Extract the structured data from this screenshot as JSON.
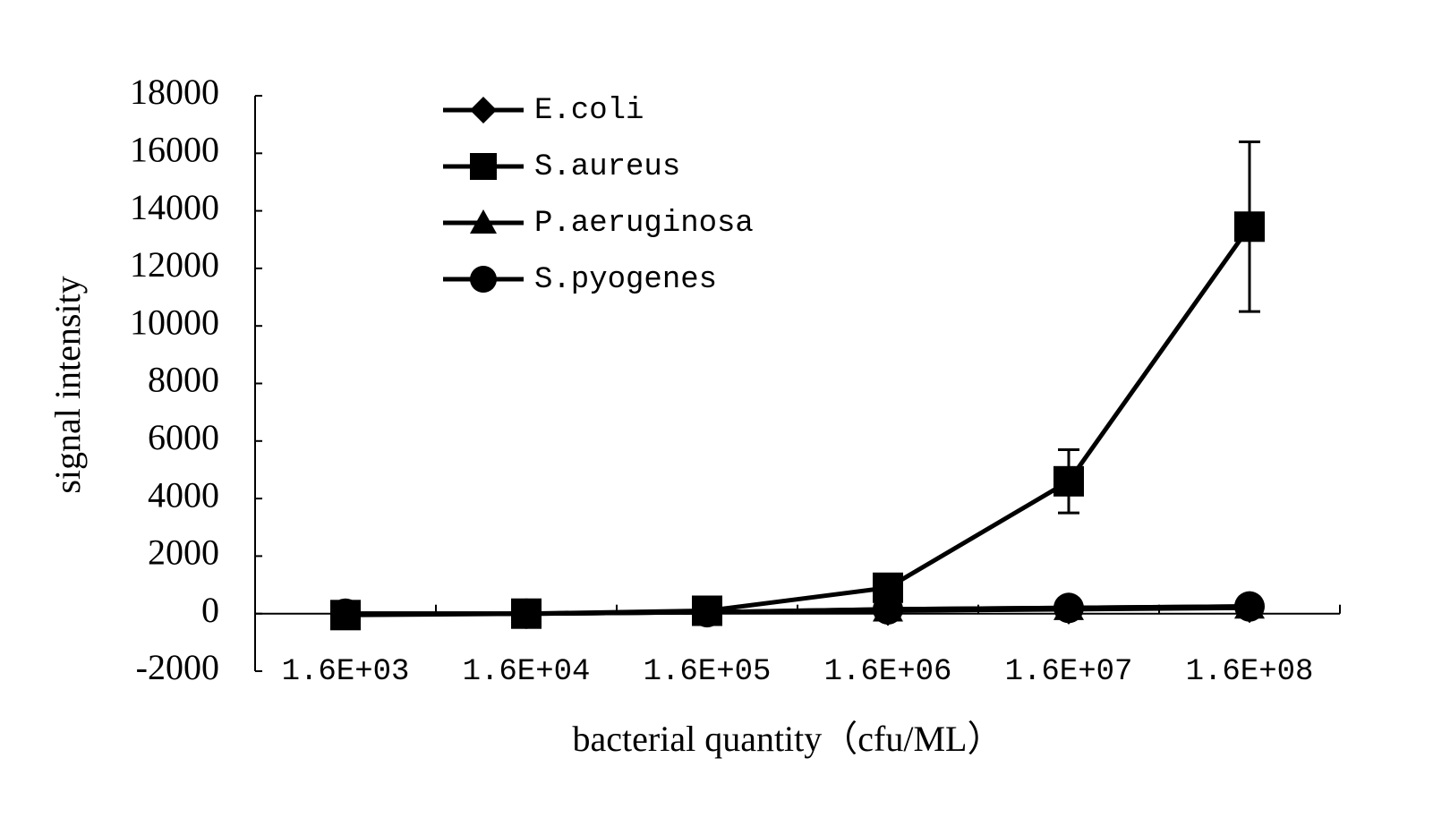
{
  "chart_data": {
    "type": "line",
    "x_label": "bacterial quantity（cfu/ML）",
    "y_label": "signal intensity",
    "categories": [
      "1.6E+03",
      "1.6E+04",
      "1.6E+05",
      "1.6E+06",
      "1.6E+07",
      "1.6E+08"
    ],
    "series": [
      {
        "name": "E.coli",
        "color": "#000000",
        "marker": "diamond",
        "values": [
          0,
          0,
          50,
          100,
          150,
          200
        ]
      },
      {
        "name": "S.aureus",
        "color": "#000000",
        "marker": "square",
        "values": [
          -50,
          0,
          100,
          900,
          4600,
          13450
        ],
        "errors": [
          null,
          null,
          null,
          null,
          1100,
          2950
        ]
      },
      {
        "name": "P.aeruginosa",
        "color": "#000000",
        "marker": "triangle",
        "values": [
          0,
          0,
          50,
          150,
          200,
          250
        ]
      },
      {
        "name": "S.pyogenes",
        "color": "#000000",
        "marker": "circle",
        "values": [
          0,
          0,
          50,
          150,
          200,
          250
        ]
      }
    ],
    "ylim": [
      -2000,
      18000
    ],
    "yticks": [
      -2000,
      0,
      2000,
      4000,
      6000,
      8000,
      10000,
      12000,
      14000,
      16000,
      18000
    ],
    "grid": false,
    "legend": "top-left"
  }
}
